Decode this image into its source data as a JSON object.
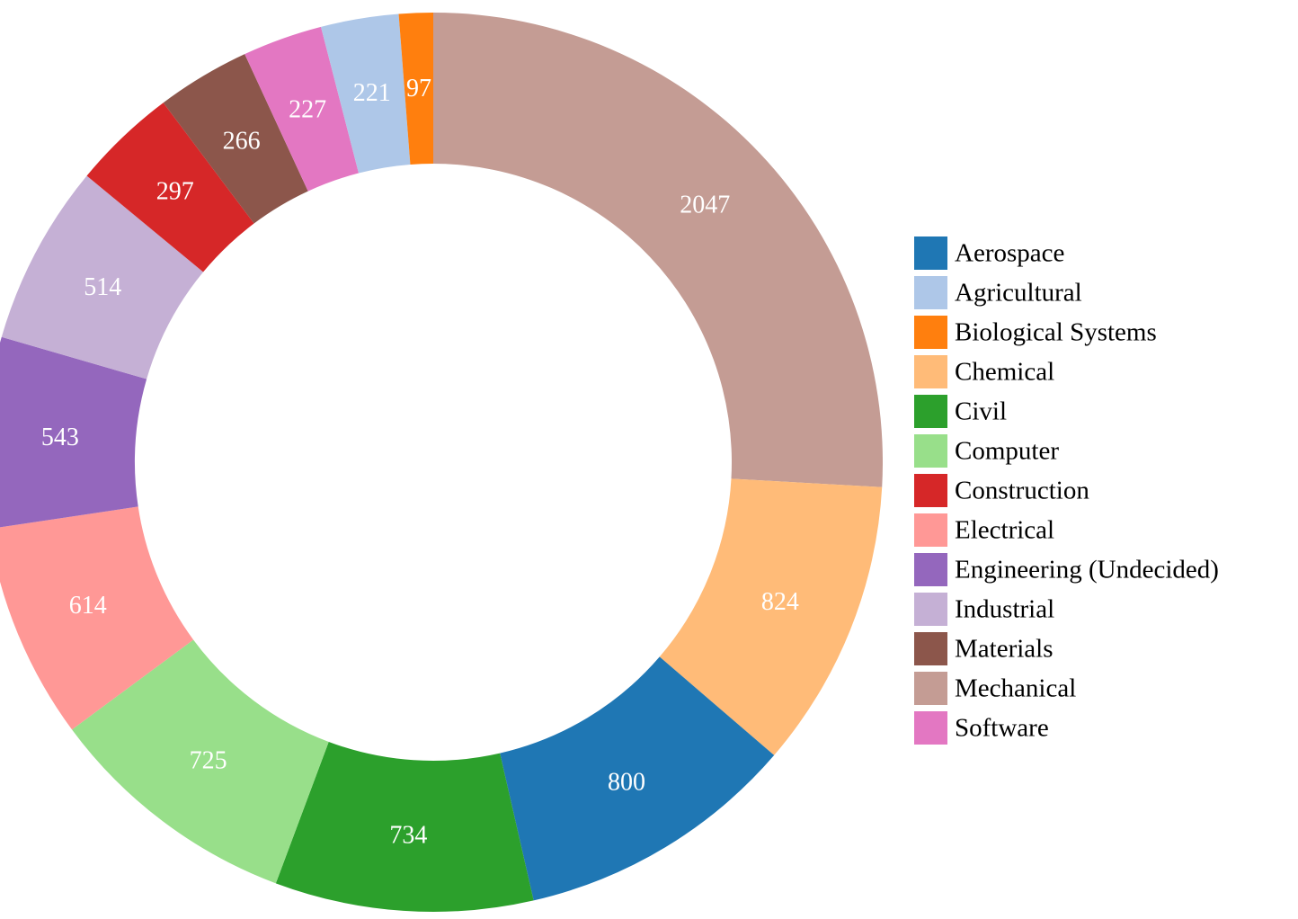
{
  "chart_data": {
    "type": "pie",
    "variant": "donut",
    "title": "",
    "legend_position": "right",
    "slices": [
      {
        "label": "Mechanical",
        "value": 2047,
        "color": "#c49c94"
      },
      {
        "label": "Chemical",
        "value": 824,
        "color": "#ffbb78"
      },
      {
        "label": "Aerospace",
        "value": 800,
        "color": "#1f77b4"
      },
      {
        "label": "Civil",
        "value": 734,
        "color": "#2ca02c"
      },
      {
        "label": "Computer",
        "value": 725,
        "color": "#98df8a"
      },
      {
        "label": "Electrical",
        "value": 614,
        "color": "#ff9896"
      },
      {
        "label": "Engineering (Undecided)",
        "value": 543,
        "color": "#9467bd"
      },
      {
        "label": "Industrial",
        "value": 514,
        "color": "#c5b0d5"
      },
      {
        "label": "Construction",
        "value": 297,
        "color": "#d62728"
      },
      {
        "label": "Materials",
        "value": 266,
        "color": "#8c564b"
      },
      {
        "label": "Software",
        "value": 227,
        "color": "#e377c2"
      },
      {
        "label": "Agricultural",
        "value": 221,
        "color": "#aec7e8"
      },
      {
        "label": "Biological Systems",
        "value": 97,
        "color": "#ff7f0e"
      }
    ],
    "legend": [
      {
        "label": "Aerospace",
        "color": "#1f77b4"
      },
      {
        "label": "Agricultural",
        "color": "#aec7e8"
      },
      {
        "label": "Biological Systems",
        "color": "#ff7f0e"
      },
      {
        "label": "Chemical",
        "color": "#ffbb78"
      },
      {
        "label": "Civil",
        "color": "#2ca02c"
      },
      {
        "label": "Computer",
        "color": "#98df8a"
      },
      {
        "label": "Construction",
        "color": "#d62728"
      },
      {
        "label": "Electrical",
        "color": "#ff9896"
      },
      {
        "label": "Engineering (Undecided)",
        "color": "#9467bd"
      },
      {
        "label": "Industrial",
        "color": "#c5b0d5"
      },
      {
        "label": "Materials",
        "color": "#8c564b"
      },
      {
        "label": "Mechanical",
        "color": "#c49c94"
      },
      {
        "label": "Software",
        "color": "#e377c2"
      }
    ]
  }
}
